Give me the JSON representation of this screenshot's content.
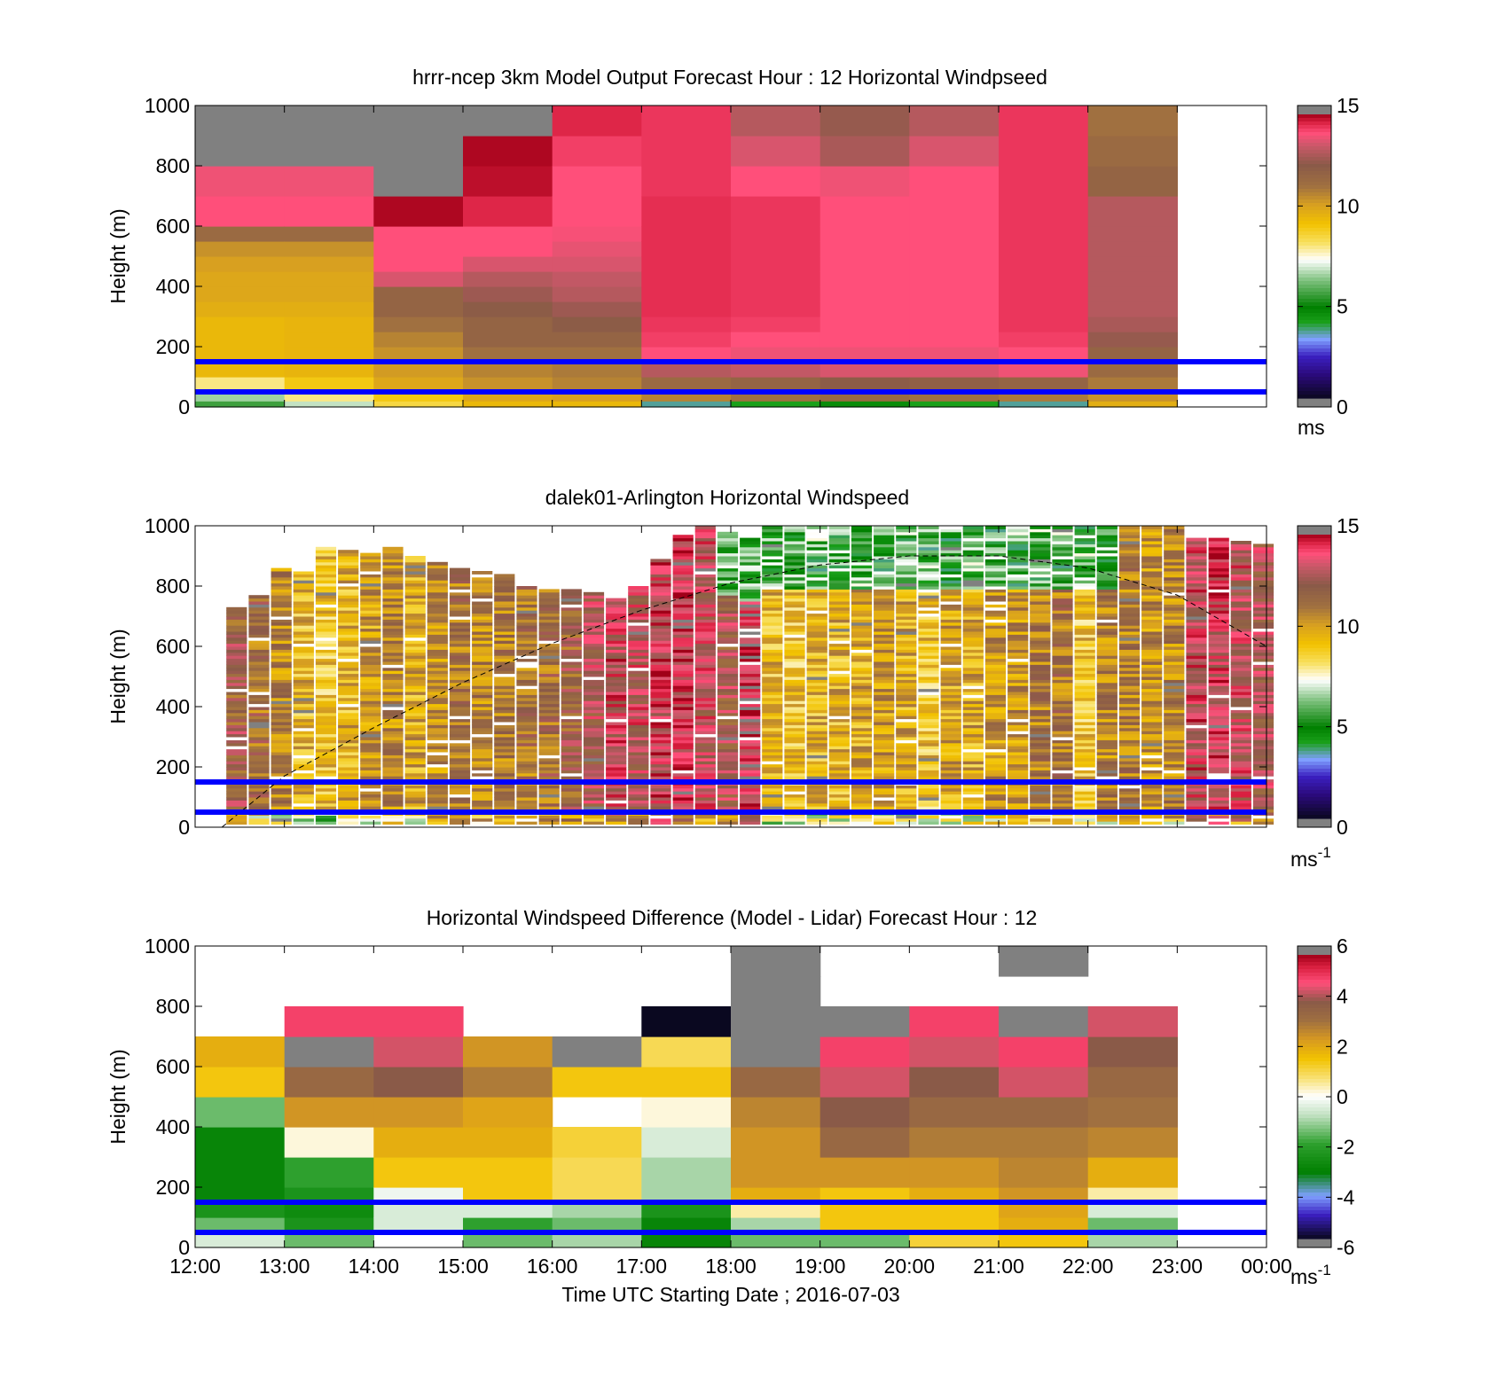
{
  "figure": {
    "xtick_labels": [
      "12:00",
      "13:00",
      "14:00",
      "15:00",
      "16:00",
      "17:00",
      "18:00",
      "19:00",
      "20:00",
      "21:00",
      "22:00",
      "23:00",
      "00:00"
    ],
    "xlabel": "Time UTC  Starting Date ; 2016-07-03",
    "reference_heights_m": [
      150,
      50
    ],
    "reference_line_color": "#0000ff"
  },
  "chart_data": [
    {
      "type": "heatmap",
      "id": "model",
      "title": "hrrr-ncep 3km Model Output   Forecast Hour : 12 Horizontal Windpseed",
      "ylabel": "Height (m)",
      "ylim": [
        0,
        1000
      ],
      "yticks": [
        0,
        200,
        400,
        600,
        800,
        1000
      ],
      "x_hours": [
        12,
        13,
        14,
        15,
        16,
        17,
        18,
        19,
        20,
        21,
        22,
        23
      ],
      "levels_top_m": [
        20,
        50,
        100,
        150,
        200,
        250,
        300,
        350,
        400,
        450,
        500,
        550,
        600,
        700,
        800,
        900,
        1000
      ],
      "values": [
        [
          5.5,
          6.5,
          8.0,
          9.5,
          9.5,
          9.5,
          9.5,
          9.8,
          10.0,
          10.0,
          10.2,
          10.5,
          11.5,
          14.0,
          13.8,
          16.0,
          16.0
        ],
        [
          6.8,
          8.0,
          9.0,
          9.6,
          9.6,
          9.6,
          9.6,
          9.8,
          10.0,
          10.0,
          10.2,
          10.5,
          11.5,
          14.0,
          13.8,
          16.0,
          16.0
        ],
        [
          8.5,
          9.0,
          10.0,
          10.3,
          10.5,
          10.8,
          11.2,
          11.8,
          11.8,
          13.5,
          14.0,
          14.0,
          14.0,
          14.9,
          16.0,
          16.0,
          16.0
        ],
        [
          9.5,
          10.0,
          10.5,
          10.8,
          11.2,
          11.8,
          11.8,
          12.2,
          12.6,
          13.0,
          13.5,
          14.0,
          14.0,
          14.5,
          14.8,
          14.9,
          16.0
        ],
        [
          9.5,
          10.2,
          10.8,
          11.0,
          11.2,
          11.8,
          12.2,
          12.6,
          13.0,
          13.2,
          13.5,
          13.7,
          13.9,
          14.0,
          14.0,
          14.2,
          14.5
        ],
        [
          3.5,
          10.8,
          11.5,
          13.0,
          14.0,
          14.2,
          14.3,
          14.4,
          14.4,
          14.4,
          14.4,
          14.4,
          14.4,
          14.4,
          14.3,
          14.3,
          14.3
        ],
        [
          4.0,
          11.2,
          11.8,
          13.2,
          13.8,
          14.0,
          14.2,
          14.3,
          14.3,
          14.3,
          14.3,
          14.3,
          14.3,
          14.3,
          14.0,
          13.5,
          13.0
        ],
        [
          4.5,
          11.5,
          12.2,
          13.5,
          13.8,
          14.0,
          14.0,
          14.0,
          14.0,
          14.0,
          14.0,
          14.0,
          14.0,
          14.0,
          13.8,
          12.8,
          12.5
        ],
        [
          4.0,
          11.2,
          12.0,
          13.5,
          13.8,
          14.0,
          14.0,
          14.0,
          14.0,
          14.0,
          14.0,
          14.0,
          14.0,
          14.0,
          14.0,
          13.5,
          13.0
        ],
        [
          3.5,
          11.0,
          11.8,
          13.8,
          14.0,
          14.2,
          14.3,
          14.3,
          14.3,
          14.3,
          14.3,
          14.3,
          14.3,
          14.3,
          14.3,
          14.3,
          14.3
        ],
        [
          9.8,
          10.5,
          11.0,
          11.5,
          11.8,
          12.5,
          12.8,
          13.0,
          13.0,
          13.0,
          13.0,
          13.0,
          13.0,
          13.0,
          11.8,
          11.5,
          11.2
        ],
        [
          null,
          null,
          null,
          null,
          null,
          null,
          null,
          null,
          null,
          null,
          null,
          null,
          null,
          null,
          null,
          null,
          null
        ]
      ],
      "colorbar": {
        "ticks": [
          0,
          5,
          10,
          15
        ],
        "unit": "ms",
        "unit_exp": "",
        "range": [
          0,
          15
        ]
      }
    },
    {
      "type": "heatmap",
      "id": "lidar",
      "title": "dalek01-Arlington  Horizontal Windspeed",
      "ylabel": "Height (m)",
      "ylim": [
        0,
        1000
      ],
      "yticks": [
        0,
        200,
        400,
        600,
        800,
        1000
      ],
      "columns_per_hour": 4,
      "column_tops_m": [
        730,
        770,
        860,
        860,
        930,
        920,
        910,
        930,
        900,
        880,
        860,
        850,
        840,
        800,
        790,
        790,
        780,
        760,
        800,
        890,
        970,
        1000,
        980,
        960,
        1000,
        1000,
        1000,
        1000,
        1000,
        1000,
        1000,
        1000,
        1000,
        1000,
        1000,
        1000,
        1000,
        1000,
        1000,
        1000,
        1000,
        1000,
        1000,
        960,
        960,
        950,
        940
      ],
      "column_mean_speed_ms": [
        12.2,
        11.5,
        10.8,
        9.5,
        9.2,
        9.6,
        10.2,
        10.6,
        9.8,
        10.6,
        11.2,
        10.8,
        11.0,
        11.2,
        11.5,
        12.0,
        12.8,
        13.5,
        13.2,
        13.8,
        14.0,
        13.2,
        12.5,
        14.2,
        9.5,
        9.2,
        9.5,
        9.6,
        9.8,
        10.2,
        9.8,
        9.2,
        10.0,
        9.8,
        10.5,
        10.5,
        11.0,
        11.2,
        9.2,
        10.8,
        11.0,
        10.5,
        10.8,
        13.5,
        13.8,
        13.2,
        12.8
      ],
      "upper_layer": {
        "x_start_hour": 17.75,
        "x_end_hour": 22.25,
        "speed_ms": 5.5
      },
      "boundary_layer_curve": {
        "x_hours": [
          12.3,
          13,
          14,
          15,
          16,
          17,
          18,
          19,
          20,
          21,
          22,
          23,
          24
        ],
        "heights_m": [
          0,
          170,
          330,
          480,
          610,
          720,
          810,
          870,
          900,
          900,
          860,
          770,
          600
        ]
      },
      "colorbar": {
        "ticks": [
          0,
          5,
          10,
          15
        ],
        "unit": "ms",
        "unit_exp": "-1",
        "range": [
          0,
          15
        ]
      }
    },
    {
      "type": "heatmap",
      "id": "difference",
      "title": "Horizontal Windspeed Difference (Model - Lidar) Forecast Hour : 12",
      "ylabel": "Height (m)",
      "ylim": [
        0,
        1000
      ],
      "yticks": [
        0,
        200,
        400,
        600,
        800,
        1000
      ],
      "x_hours": [
        12,
        13,
        14,
        15,
        16,
        17,
        18,
        19,
        20,
        21,
        22,
        23
      ],
      "levels_top_m": [
        50,
        100,
        150,
        200,
        300,
        400,
        500,
        600,
        700,
        800,
        900,
        1000
      ],
      "values": [
        [
          -0.5,
          -1.5,
          -2.5,
          -3.0,
          -3.0,
          -3.0,
          -1.5,
          1.5,
          2.0,
          null,
          null,
          null
        ],
        [
          -1.5,
          -2.5,
          -2.8,
          -2.5,
          -2.0,
          0.2,
          2.5,
          3.5,
          6.5,
          5.0,
          null,
          null
        ],
        [
          null,
          -0.5,
          -0.5,
          -0.2,
          1.5,
          2.0,
          2.5,
          4.0,
          4.5,
          5.0,
          null,
          null
        ],
        [
          -1.5,
          -2.0,
          -0.5,
          1.5,
          1.5,
          2.0,
          2.2,
          3.0,
          2.5,
          null,
          null,
          null
        ],
        [
          -1.0,
          -1.5,
          -1.0,
          1.0,
          1.0,
          1.2,
          null,
          1.5,
          6.5,
          null,
          null,
          null
        ],
        [
          -3.0,
          -3.0,
          -2.5,
          -1.0,
          -1.0,
          -0.5,
          0.2,
          1.5,
          1.0,
          -6.0,
          null,
          null
        ],
        [
          -1.5,
          -1.0,
          0.5,
          2.0,
          2.5,
          2.5,
          2.8,
          3.5,
          6.5,
          6.5,
          6.5,
          6.5
        ],
        [
          -1.5,
          1.5,
          1.5,
          1.5,
          2.5,
          3.5,
          4.0,
          4.5,
          5.0,
          6.5,
          null,
          null
        ],
        [
          1.2,
          1.5,
          1.5,
          2.0,
          2.5,
          3.0,
          3.5,
          4.0,
          4.5,
          5.0,
          null,
          null
        ],
        [
          1.5,
          2.0,
          2.2,
          2.5,
          2.8,
          3.0,
          3.5,
          4.5,
          5.0,
          6.5,
          null,
          6.5
        ],
        [
          -1.0,
          -1.5,
          -0.5,
          0.5,
          2.0,
          2.8,
          3.2,
          3.5,
          4.0,
          4.5,
          null,
          null
        ],
        [
          null,
          null,
          null,
          null,
          null,
          null,
          null,
          null,
          null,
          null,
          null,
          null
        ]
      ],
      "colorbar": {
        "ticks": [
          -6,
          -4,
          -2,
          0,
          2,
          4,
          6
        ],
        "unit": "ms",
        "unit_exp": "-1",
        "range": [
          -6,
          6
        ]
      }
    }
  ]
}
